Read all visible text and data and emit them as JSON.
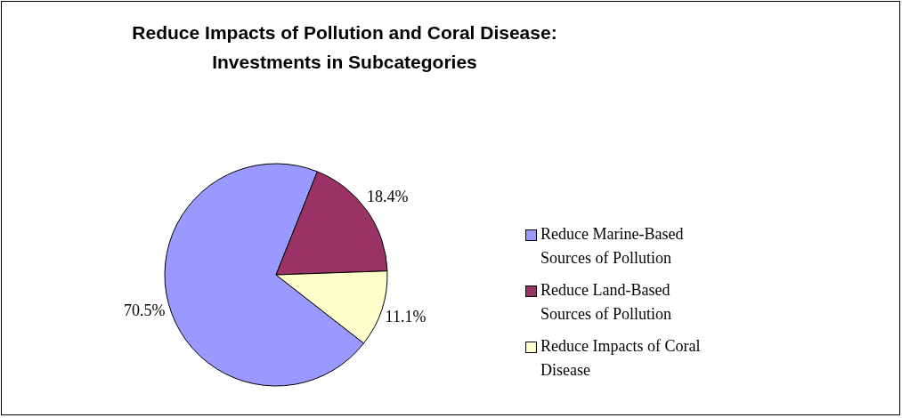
{
  "chart_data": {
    "type": "pie",
    "title": "Reduce Impacts of Pollution and Coral Disease:\nInvestments in Subcategories",
    "categories": [
      "Reduce Marine-Based Sources of Pollution",
      "Reduce Land-Based Sources of Pollution",
      "Reduce Impacts of Coral Disease"
    ],
    "values": [
      70.5,
      18.4,
      11.1
    ],
    "value_labels": [
      "70.5%",
      "18.4%",
      "11.1%"
    ],
    "colors": [
      "#9999ff",
      "#993366",
      "#ffffcc"
    ],
    "legend": "right"
  }
}
